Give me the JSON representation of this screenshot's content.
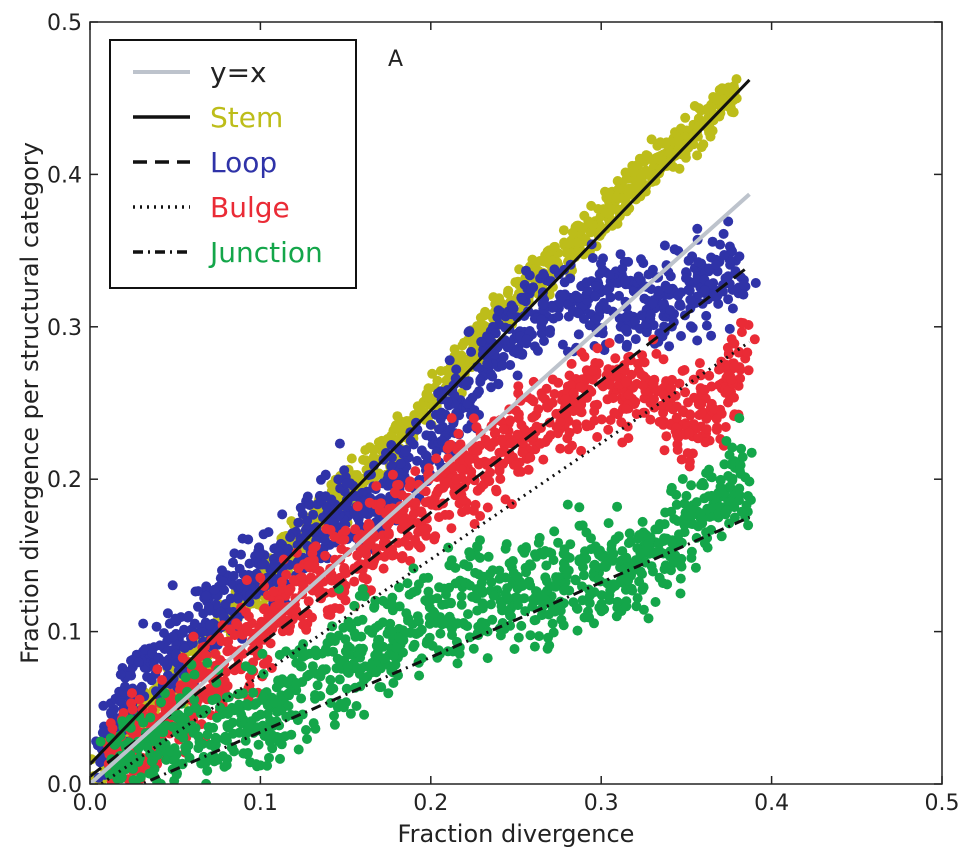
{
  "chart_data": {
    "type": "scatter",
    "title": "",
    "panel_label": "A",
    "xlabel": "Fraction divergence",
    "ylabel": "Fraction divergence per structural category",
    "xlim": [
      0.0,
      0.5
    ],
    "ylim": [
      0.0,
      0.5
    ],
    "xticks": [
      0.0,
      0.1,
      0.2,
      0.3,
      0.4,
      0.5
    ],
    "yticks": [
      0.0,
      0.1,
      0.2,
      0.3,
      0.4,
      0.5
    ],
    "xtick_labels": [
      "0.0",
      "0.1",
      "0.2",
      "0.3",
      "0.4",
      "0.5"
    ],
    "ytick_labels": [
      "0.0",
      "0.1",
      "0.2",
      "0.3",
      "0.4",
      "0.5"
    ],
    "grid": false,
    "legend_position": "top-left",
    "legend": [
      {
        "label": "y=x",
        "style": "solid",
        "color": "#bdc3cc",
        "text_color": "#222222"
      },
      {
        "label": "Stem",
        "style": "solid",
        "color": "#111111",
        "text_color": "#bdbd1a"
      },
      {
        "label": "Loop",
        "style": "dashed",
        "color": "#111111",
        "text_color": "#2f33a8"
      },
      {
        "label": "Bulge",
        "style": "dotted",
        "color": "#111111",
        "text_color": "#ea2b36"
      },
      {
        "label": "Junction",
        "style": "dashdot",
        "color": "#111111",
        "text_color": "#14a64a"
      }
    ],
    "series": [
      {
        "name": "Stem",
        "color": "#bdbd1a",
        "cloud": [
          [
            0.005,
            0.008
          ],
          [
            0.02,
            0.03
          ],
          [
            0.04,
            0.055
          ],
          [
            0.06,
            0.08
          ],
          [
            0.08,
            0.105
          ],
          [
            0.1,
            0.13
          ],
          [
            0.12,
            0.155
          ],
          [
            0.14,
            0.18
          ],
          [
            0.16,
            0.2
          ],
          [
            0.18,
            0.225
          ],
          [
            0.2,
            0.25
          ],
          [
            0.22,
            0.28
          ],
          [
            0.24,
            0.305
          ],
          [
            0.26,
            0.33
          ],
          [
            0.28,
            0.35
          ],
          [
            0.3,
            0.37
          ],
          [
            0.32,
            0.395
          ],
          [
            0.34,
            0.415
          ],
          [
            0.36,
            0.435
          ],
          [
            0.38,
            0.452
          ]
        ],
        "spread": 0.014
      },
      {
        "name": "Loop",
        "color": "#2f33a8",
        "cloud": [
          [
            0.005,
            0.02
          ],
          [
            0.02,
            0.05
          ],
          [
            0.04,
            0.08
          ],
          [
            0.06,
            0.1
          ],
          [
            0.08,
            0.12
          ],
          [
            0.1,
            0.14
          ],
          [
            0.12,
            0.15
          ],
          [
            0.14,
            0.18
          ],
          [
            0.16,
            0.18
          ],
          [
            0.18,
            0.2
          ],
          [
            0.2,
            0.22
          ],
          [
            0.22,
            0.26
          ],
          [
            0.24,
            0.29
          ],
          [
            0.26,
            0.31
          ],
          [
            0.28,
            0.32
          ],
          [
            0.3,
            0.32
          ],
          [
            0.32,
            0.32
          ],
          [
            0.34,
            0.32
          ],
          [
            0.36,
            0.33
          ],
          [
            0.385,
            0.34
          ]
        ],
        "spread": 0.03
      },
      {
        "name": "Bulge",
        "color": "#ea2b36",
        "cloud": [
          [
            0.01,
            0.01
          ],
          [
            0.03,
            0.03
          ],
          [
            0.05,
            0.05
          ],
          [
            0.07,
            0.07
          ],
          [
            0.09,
            0.09
          ],
          [
            0.11,
            0.11
          ],
          [
            0.13,
            0.13
          ],
          [
            0.15,
            0.14
          ],
          [
            0.17,
            0.16
          ],
          [
            0.19,
            0.18
          ],
          [
            0.21,
            0.2
          ],
          [
            0.23,
            0.21
          ],
          [
            0.25,
            0.23
          ],
          [
            0.27,
            0.24
          ],
          [
            0.29,
            0.26
          ],
          [
            0.31,
            0.26
          ],
          [
            0.33,
            0.26
          ],
          [
            0.35,
            0.24
          ],
          [
            0.37,
            0.25
          ],
          [
            0.385,
            0.29
          ]
        ],
        "spread": 0.03
      },
      {
        "name": "Junction",
        "color": "#14a64a",
        "cloud": [
          [
            0.01,
            0.005
          ],
          [
            0.03,
            0.02
          ],
          [
            0.05,
            0.03
          ],
          [
            0.07,
            0.04
          ],
          [
            0.09,
            0.04
          ],
          [
            0.11,
            0.05
          ],
          [
            0.13,
            0.07
          ],
          [
            0.15,
            0.08
          ],
          [
            0.17,
            0.09
          ],
          [
            0.19,
            0.1
          ],
          [
            0.21,
            0.11
          ],
          [
            0.23,
            0.12
          ],
          [
            0.25,
            0.13
          ],
          [
            0.27,
            0.13
          ],
          [
            0.29,
            0.14
          ],
          [
            0.31,
            0.14
          ],
          [
            0.33,
            0.15
          ],
          [
            0.35,
            0.17
          ],
          [
            0.37,
            0.19
          ],
          [
            0.385,
            0.2
          ]
        ],
        "spread": 0.035
      }
    ],
    "fit_lines": [
      {
        "name": "y=x",
        "style": "solid",
        "color": "#bdc3cc",
        "x": [
          0.0,
          0.387
        ],
        "y": [
          0.0,
          0.387
        ]
      },
      {
        "name": "Stem",
        "style": "solid",
        "color": "#111111",
        "x": [
          0.0,
          0.387
        ],
        "y": [
          0.013,
          0.462
        ]
      },
      {
        "name": "Loop",
        "style": "dashed",
        "color": "#111111",
        "x": [
          0.0,
          0.387
        ],
        "y": [
          0.005,
          0.34
        ]
      },
      {
        "name": "Bulge",
        "style": "dotted",
        "color": "#111111",
        "x": [
          0.0,
          0.387
        ],
        "y": [
          -0.005,
          0.29
        ]
      },
      {
        "name": "Junction",
        "style": "dashdot",
        "color": "#111111",
        "x": [
          0.0,
          0.387
        ],
        "y": [
          -0.015,
          0.175
        ]
      }
    ]
  }
}
